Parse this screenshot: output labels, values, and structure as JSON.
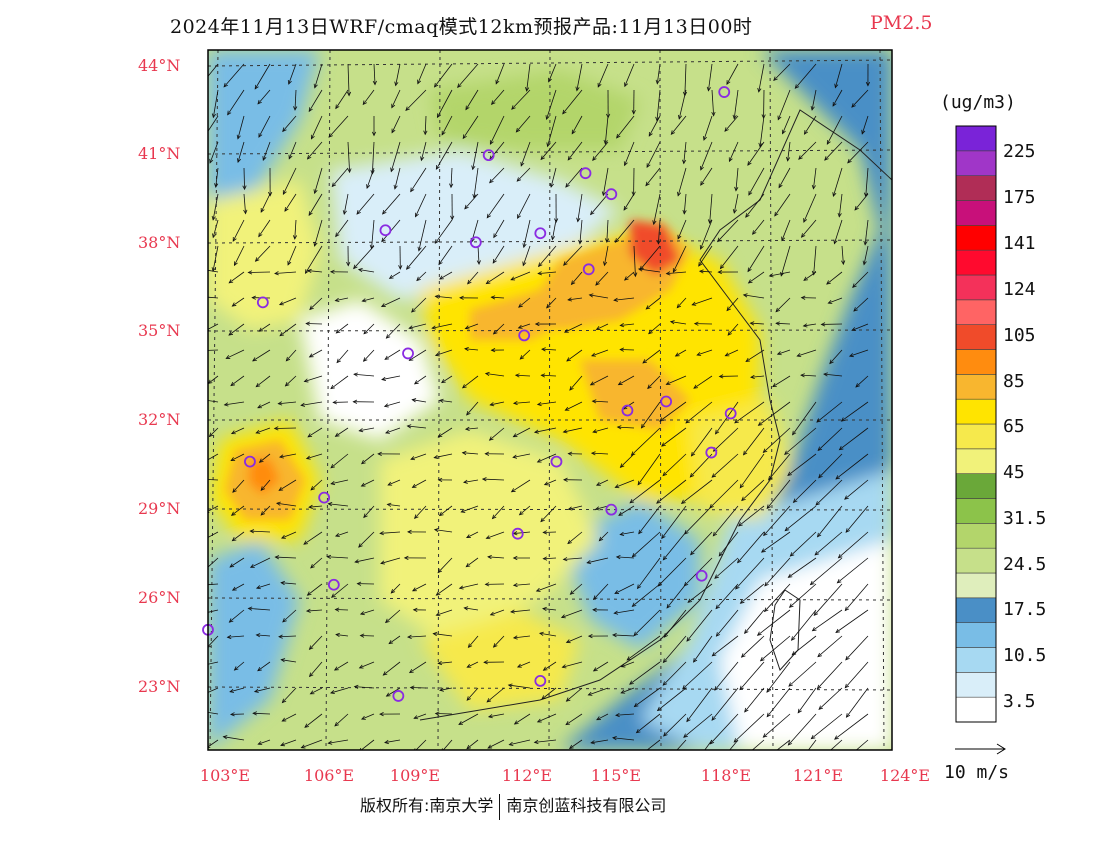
{
  "title": {
    "text": "2024年11月13日WRF/cmaq模式12km预报产品:11月13日00时",
    "variable": "PM2.5"
  },
  "map": {
    "lon_labels": [
      "103°E",
      "106°E",
      "109°E",
      "112°E",
      "115°E",
      "118°E",
      "121°E",
      "124°E"
    ],
    "lat_labels": [
      "44°N",
      "41°N",
      "38°N",
      "35°N",
      "32°N",
      "29°N",
      "26°N",
      "23°N"
    ],
    "lon_range": [
      102.8,
      124
    ],
    "lat_range": [
      21,
      44.3
    ]
  },
  "legend": {
    "unit": "(ug/m3)",
    "labels": [
      "225",
      "175",
      "141",
      "124",
      "105",
      "85",
      "65",
      "45",
      "31.5",
      "24.5",
      "17.5",
      "10.5",
      "3.5"
    ],
    "colors": [
      "#ffffff",
      "#d9eef9",
      "#a7d9f2",
      "#79bde6",
      "#4a8fc6",
      "#dfeebc",
      "#c6e08a",
      "#b3d56b",
      "#8cc34a",
      "#6aa839",
      "#f1f27a",
      "#f6e94c",
      "#ffe400",
      "#f8b62f",
      "#ff8c0f",
      "#f04b2a",
      "#ff6464",
      "#f4315a",
      "#ff0a2e",
      "#ff0000",
      "#c8107a",
      "#b02d56",
      "#a036c8",
      "#7a23d8"
    ]
  },
  "wind_reference": {
    "label": "10 m/s"
  },
  "stations": [
    {
      "lon": 118.8,
      "lat": 42.9
    },
    {
      "lon": 111.5,
      "lat": 40.8
    },
    {
      "lon": 114.5,
      "lat": 40.2
    },
    {
      "lon": 115.3,
      "lat": 39.5
    },
    {
      "lon": 108.3,
      "lat": 38.3
    },
    {
      "lon": 111.1,
      "lat": 37.9
    },
    {
      "lon": 113.1,
      "lat": 38.2
    },
    {
      "lon": 114.6,
      "lat": 37.0
    },
    {
      "lon": 104.5,
      "lat": 35.9
    },
    {
      "lon": 112.6,
      "lat": 34.8
    },
    {
      "lon": 109.0,
      "lat": 34.2
    },
    {
      "lon": 117.0,
      "lat": 32.6
    },
    {
      "lon": 115.8,
      "lat": 32.3
    },
    {
      "lon": 119.0,
      "lat": 32.2
    },
    {
      "lon": 118.4,
      "lat": 30.9
    },
    {
      "lon": 104.1,
      "lat": 30.6
    },
    {
      "lon": 113.6,
      "lat": 30.6
    },
    {
      "lon": 106.4,
      "lat": 29.4
    },
    {
      "lon": 115.3,
      "lat": 29.0
    },
    {
      "lon": 112.4,
      "lat": 28.2
    },
    {
      "lon": 118.1,
      "lat": 26.8
    },
    {
      "lon": 106.7,
      "lat": 26.5
    },
    {
      "lon": 102.8,
      "lat": 25.0
    },
    {
      "lon": 108.7,
      "lat": 22.8
    },
    {
      "lon": 113.1,
      "lat": 23.3
    }
  ],
  "footer": {
    "left": "版权所有:南京大学",
    "right": "南京创蓝科技有限公司"
  }
}
